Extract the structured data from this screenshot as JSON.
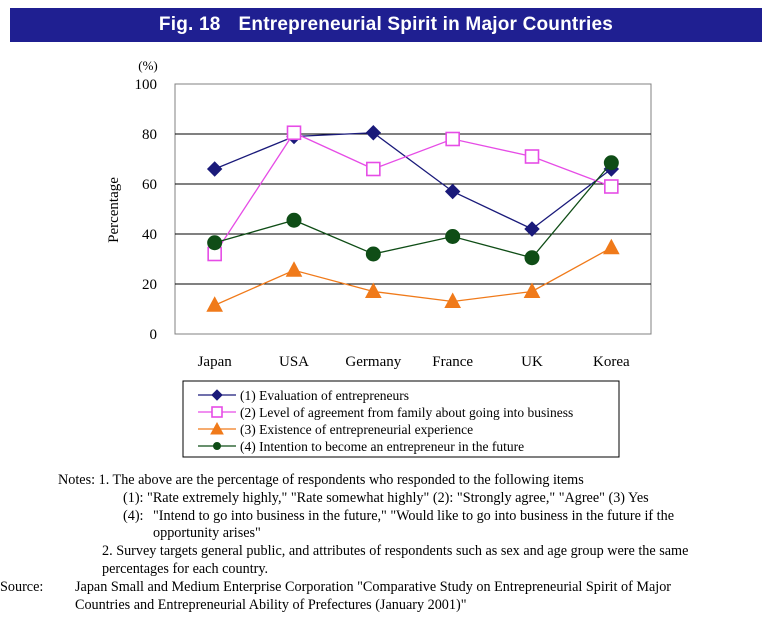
{
  "banner": {
    "fig_label": "Fig. 18",
    "title": "Entrepreneurial Spirit in Major Countries"
  },
  "chart_data": {
    "type": "line",
    "categories": [
      "Japan",
      "USA",
      "Germany",
      "France",
      "UK",
      "Korea"
    ],
    "unit_label": "(%)",
    "ylabel": "Percentage",
    "ylim": [
      0,
      100
    ],
    "yticks": [
      "0",
      "20",
      "40",
      "60",
      "80",
      "100"
    ],
    "grid": true,
    "legend_position": "bottom",
    "series": [
      {
        "name": "(1) Evaluation of entrepreneurs",
        "marker": "diamond",
        "color": "#1a1a7a",
        "marker_fill": "#1a1a7a",
        "values": [
          66,
          79,
          80.5,
          57,
          42,
          66
        ]
      },
      {
        "name": "(2) Level of agreement from family about going into business",
        "marker": "square",
        "color": "#e64ce6",
        "marker_fill": "#ffffff",
        "values": [
          32,
          80.5,
          66,
          78,
          71,
          59
        ]
      },
      {
        "name": "(3) Existence of entrepreneurial experience",
        "marker": "triangle",
        "color": "#f07a1a",
        "marker_fill": "#f07a1a",
        "values": [
          11.5,
          25.5,
          17,
          13,
          17,
          34.5
        ]
      },
      {
        "name": "(4) Intention to become an entrepreneur in the future",
        "marker": "circle",
        "color": "#0f4d16",
        "marker_fill": "#0f4d16",
        "values": [
          36.5,
          45.5,
          32,
          39,
          30.5,
          68.5
        ]
      }
    ]
  },
  "notes": {
    "label": "Notes:",
    "line1": "1. The above are the percentage of respondents who responded to the following items",
    "line2": "(1):  \"Rate extremely highly,\" \"Rate somewhat highly\" (2): \"Strongly agree,\" \"Agree\" (3) Yes",
    "line3_label": "(4):",
    "line3": "\"Intend to go into business in the future,\" \"Would like to go into business in the future if the opportunity arises\"",
    "line4": "2. Survey targets general public, and attributes of respondents such as sex and age group were the same percentages for each country."
  },
  "source": {
    "label": "Source:",
    "text": "Japan Small and Medium Enterprise Corporation \"Comparative Study on Entrepreneurial Spirit of Major Countries and Entrepreneurial Ability of Prefectures (January 2001)\""
  }
}
